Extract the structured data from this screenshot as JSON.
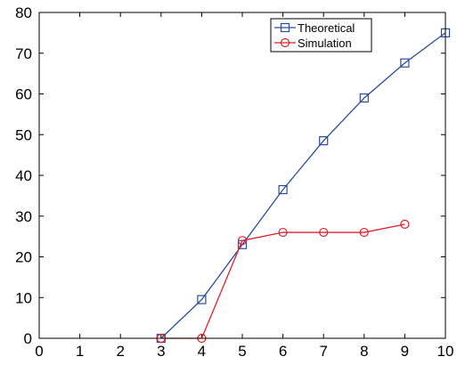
{
  "chart_data": {
    "type": "line",
    "title": "",
    "xlabel": "",
    "ylabel": "",
    "xlim": [
      0,
      10
    ],
    "ylim": [
      0,
      80
    ],
    "xticks": [
      0,
      1,
      2,
      3,
      4,
      5,
      6,
      7,
      8,
      9,
      10
    ],
    "yticks": [
      0,
      10,
      20,
      30,
      40,
      50,
      60,
      70,
      80
    ],
    "grid": false,
    "legend_position": "top-right",
    "series": [
      {
        "name": "Theoretical",
        "color": "#2b4ba0",
        "marker": "square",
        "x": [
          3,
          4,
          5,
          6,
          7,
          8,
          9,
          10
        ],
        "y": [
          0,
          9.5,
          23,
          36.5,
          48.5,
          59,
          67.6,
          75
        ]
      },
      {
        "name": "Simulation",
        "color": "#e0202a",
        "marker": "circle",
        "x": [
          3,
          4,
          5,
          6,
          7,
          8,
          9
        ],
        "y": [
          0,
          0,
          24,
          26,
          26,
          26,
          28
        ]
      }
    ]
  }
}
